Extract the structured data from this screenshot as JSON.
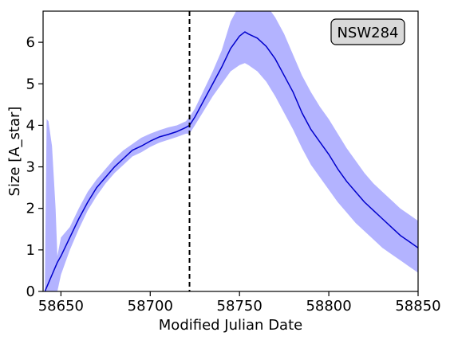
{
  "chart_data": {
    "type": "line",
    "xlabel": "Modified Julian Date",
    "ylabel": "Size [A_star]",
    "xlim": [
      58640,
      58850
    ],
    "ylim": [
      0,
      6.75
    ],
    "x_ticks": [
      58650,
      58700,
      58750,
      58800,
      58850
    ],
    "y_ticks": [
      0,
      1,
      2,
      3,
      4,
      5,
      6
    ],
    "grid": false,
    "annotation": "NSW284",
    "annotation_position": "top-right",
    "vertical_line": {
      "x": 58722,
      "style": "dashed",
      "color": "#000000"
    },
    "colors": {
      "line": "#0000cc",
      "band": "#b3b3ff"
    },
    "series": [
      {
        "x": [
          58641,
          58642,
          58643,
          58645,
          58647,
          58648,
          58650,
          58655,
          58660,
          58665,
          58670,
          58675,
          58680,
          58685,
          58690,
          58695,
          58700,
          58705,
          58710,
          58715,
          58720,
          58722,
          58725,
          58730,
          58735,
          58740,
          58745,
          58750,
          58753,
          58755,
          58760,
          58765,
          58770,
          58775,
          58780,
          58785,
          58790,
          58795,
          58800,
          58805,
          58810,
          58815,
          58820,
          58825,
          58830,
          58835,
          58840,
          58845,
          58850
        ],
        "y": [
          0.0,
          0.1,
          0.2,
          0.4,
          0.6,
          0.7,
          0.85,
          1.3,
          1.75,
          2.15,
          2.5,
          2.75,
          3.0,
          3.2,
          3.4,
          3.5,
          3.62,
          3.72,
          3.78,
          3.85,
          3.95,
          4.0,
          4.2,
          4.6,
          5.0,
          5.4,
          5.85,
          6.15,
          6.25,
          6.2,
          6.1,
          5.9,
          5.6,
          5.2,
          4.8,
          4.3,
          3.9,
          3.6,
          3.3,
          2.95,
          2.65,
          2.4,
          2.15,
          1.95,
          1.75,
          1.55,
          1.35,
          1.2,
          1.05
        ],
        "lower": [
          0.0,
          0.0,
          0.0,
          0.0,
          0.0,
          0.0,
          0.4,
          1.0,
          1.5,
          1.95,
          2.3,
          2.6,
          2.85,
          3.05,
          3.25,
          3.35,
          3.48,
          3.58,
          3.65,
          3.72,
          3.8,
          3.8,
          4.0,
          4.35,
          4.7,
          5.0,
          5.3,
          5.45,
          5.5,
          5.45,
          5.3,
          5.05,
          4.7,
          4.3,
          3.9,
          3.45,
          3.05,
          2.75,
          2.45,
          2.15,
          1.9,
          1.65,
          1.45,
          1.25,
          1.05,
          0.9,
          0.75,
          0.6,
          0.45
        ],
        "upper": [
          0.2,
          4.15,
          4.1,
          3.5,
          2.0,
          0.85,
          1.3,
          1.55,
          2.0,
          2.4,
          2.7,
          2.95,
          3.2,
          3.4,
          3.55,
          3.7,
          3.8,
          3.88,
          3.95,
          4.0,
          4.1,
          4.2,
          4.4,
          4.85,
          5.3,
          5.8,
          6.5,
          6.9,
          7.0,
          7.0,
          7.0,
          6.9,
          6.6,
          6.2,
          5.7,
          5.2,
          4.8,
          4.45,
          4.15,
          3.8,
          3.45,
          3.15,
          2.85,
          2.6,
          2.4,
          2.2,
          2.0,
          1.85,
          1.7
        ]
      }
    ]
  }
}
